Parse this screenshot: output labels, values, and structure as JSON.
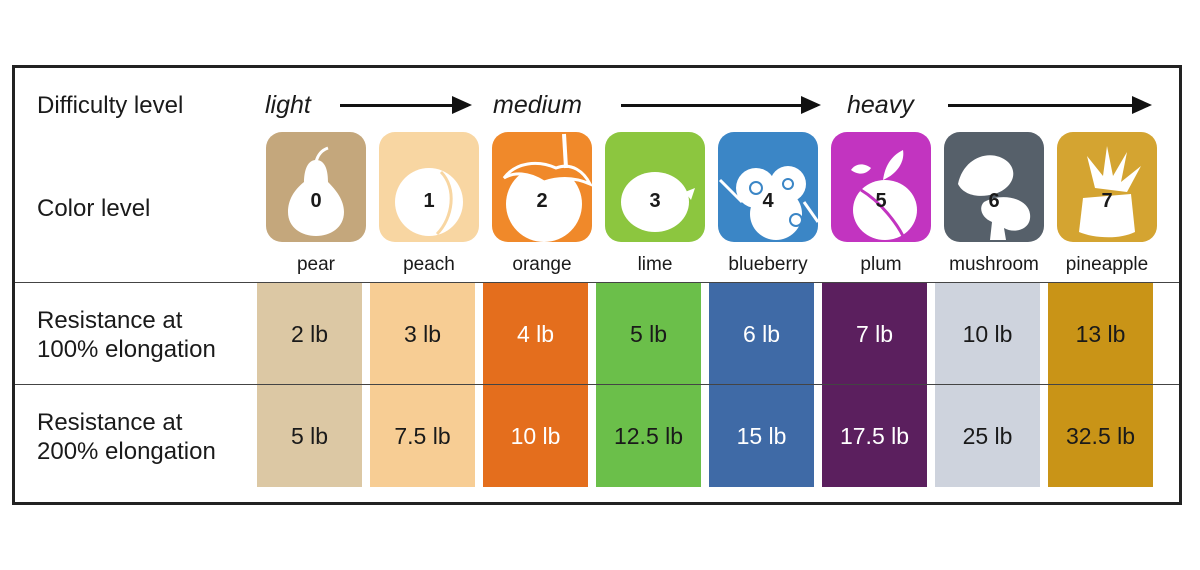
{
  "labels": {
    "difficulty": "Difficulty level",
    "color": "Color level",
    "res100_line1": "Resistance at",
    "res100_line2": "100% elongation",
    "res200_line1": "Resistance at",
    "res200_line2": "200% elongation"
  },
  "difficulty_words": [
    "light",
    "medium",
    "heavy"
  ],
  "levels": [
    {
      "num": "0",
      "name": "pear",
      "icon": "pear-icon",
      "tile_color": "#c4a77c",
      "cell_color": "#dcc8a4",
      "text_color": "#1a1a1a",
      "r100": "2 lb",
      "r200": "5 lb"
    },
    {
      "num": "1",
      "name": "peach",
      "icon": "peach-icon",
      "tile_color": "#f8d6a2",
      "cell_color": "#f7cd94",
      "text_color": "#1a1a1a",
      "r100": "3 lb",
      "r200": "7.5 lb"
    },
    {
      "num": "2",
      "name": "orange",
      "icon": "orange-icon",
      "tile_color": "#f0892a",
      "cell_color": "#e46e1d",
      "text_color": "#ffffff",
      "r100": "4 lb",
      "r200": "10 lb"
    },
    {
      "num": "3",
      "name": "lime",
      "icon": "lime-icon",
      "tile_color": "#8cc63f",
      "cell_color": "#6bbf4a",
      "text_color": "#1a1a1a",
      "r100": "5 lb",
      "r200": "12.5 lb"
    },
    {
      "num": "4",
      "name": "blueberry",
      "icon": "blueberry-icon",
      "tile_color": "#3b86c6",
      "cell_color": "#3f6aa6",
      "text_color": "#ffffff",
      "r100": "6 lb",
      "r200": "15 lb"
    },
    {
      "num": "5",
      "name": "plum",
      "icon": "plum-icon",
      "tile_color": "#c234c0",
      "cell_color": "#5b1f5e",
      "text_color": "#ffffff",
      "r100": "7 lb",
      "r200": "17.5 lb"
    },
    {
      "num": "6",
      "name": "mushroom",
      "icon": "mushroom-icon",
      "tile_color": "#56606a",
      "cell_color": "#ced3dd",
      "text_color": "#1a1a1a",
      "r100": "10 lb",
      "r200": "25 lb"
    },
    {
      "num": "7",
      "name": "pineapple",
      "icon": "pineapple-icon",
      "tile_color": "#d4a431",
      "cell_color": "#c99417",
      "text_color": "#1a1a1a",
      "r100": "13 lb",
      "r200": "32.5 lb"
    }
  ]
}
